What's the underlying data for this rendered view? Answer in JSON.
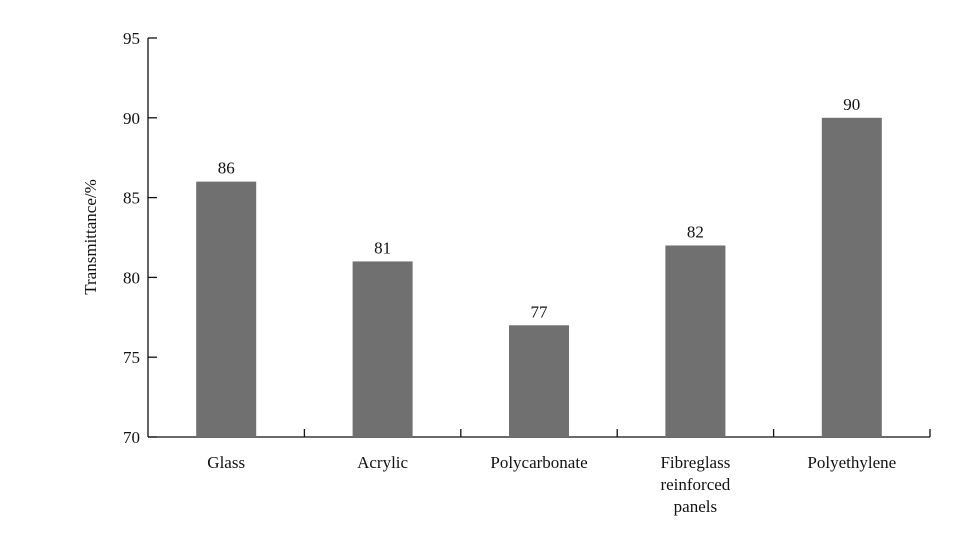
{
  "chart_data": {
    "type": "bar",
    "categories": [
      [
        "Glass"
      ],
      [
        "Acrylic"
      ],
      [
        "Polycarbonate"
      ],
      [
        "Fibreglass",
        "reinforced",
        "panels"
      ],
      [
        "Polyethylene"
      ]
    ],
    "values": [
      86,
      81,
      77,
      82,
      90
    ],
    "data_labels": [
      "86",
      "81",
      "77",
      "82",
      "90"
    ],
    "title": "",
    "xlabel": "",
    "ylabel": "Transmittance/%",
    "ylim": [
      70,
      95
    ],
    "yticks": [
      70,
      75,
      80,
      85,
      90,
      95
    ],
    "grid": false,
    "bar_color": "#707070",
    "axis_color": "#111111"
  }
}
